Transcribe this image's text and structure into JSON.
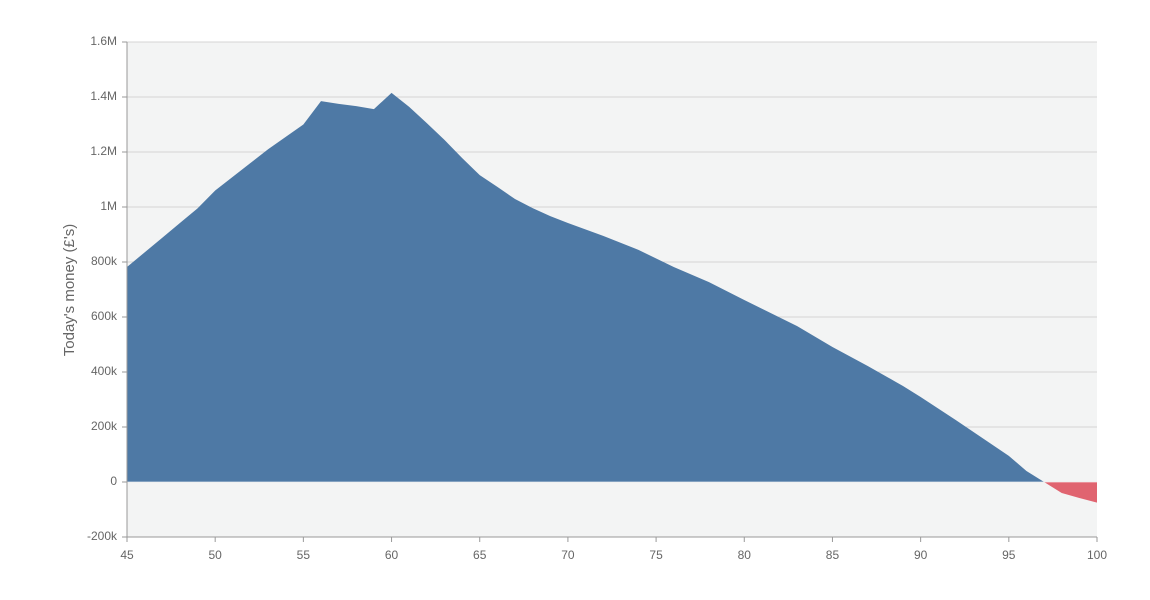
{
  "chart_data": {
    "type": "area",
    "y_label": "Today's money (£'s)",
    "x": [
      45,
      46,
      47,
      48,
      49,
      50,
      51,
      52,
      53,
      54,
      55,
      56,
      57,
      58,
      59,
      60,
      61,
      62,
      63,
      64,
      65,
      66,
      67,
      68,
      69,
      70,
      72,
      74,
      76,
      78,
      80,
      83,
      85,
      87,
      89,
      90,
      92,
      95,
      96,
      97,
      98,
      99,
      100
    ],
    "series": [
      {
        "color": "#4e79a5",
        "values": [
          782000,
          835000,
          888000,
          942000,
          995000,
          1060000,
          1110000,
          1160000,
          1210000,
          1255000,
          1300000,
          1385000,
          1375000,
          1367000,
          1356000,
          1415000,
          1364000,
          1305000,
          1244000,
          1178000,
          1116000,
          1073000,
          1029000,
          996000,
          967000,
          942000,
          895000,
          844000,
          782000,
          727000,
          662000,
          567000,
          491000,
          422000,
          349000,
          309000,
          225000,
          95000,
          40000,
          0,
          null,
          null,
          null
        ]
      },
      {
        "color": "#e06470",
        "values": [
          null,
          null,
          null,
          null,
          null,
          null,
          null,
          null,
          null,
          null,
          null,
          null,
          null,
          null,
          null,
          null,
          null,
          null,
          null,
          null,
          null,
          null,
          null,
          null,
          null,
          null,
          null,
          null,
          null,
          null,
          null,
          null,
          null,
          null,
          null,
          null,
          null,
          null,
          null,
          0,
          -40000,
          -58000,
          -75000
        ]
      }
    ],
    "xlim": [
      45,
      100
    ],
    "xticks": [
      45,
      50,
      55,
      60,
      65,
      70,
      75,
      80,
      85,
      90,
      95,
      100
    ],
    "ylim": [
      -200000,
      1600000
    ],
    "yticks": [
      {
        "value": -200000,
        "label": "-200k"
      },
      0,
      {
        "value": 200000,
        "label": "200k"
      },
      {
        "value": 400000,
        "label": "400k"
      },
      {
        "value": 600000,
        "label": "600k"
      },
      {
        "value": 800000,
        "label": "800k"
      },
      {
        "value": 1000000,
        "label": "1M"
      },
      {
        "value": 1200000,
        "label": "1.2M"
      },
      {
        "value": 1400000,
        "label": "1.4M"
      },
      {
        "value": 1600000,
        "label": "1.6M"
      }
    ],
    "grid": true,
    "plot_background": "#f3f4f4"
  }
}
